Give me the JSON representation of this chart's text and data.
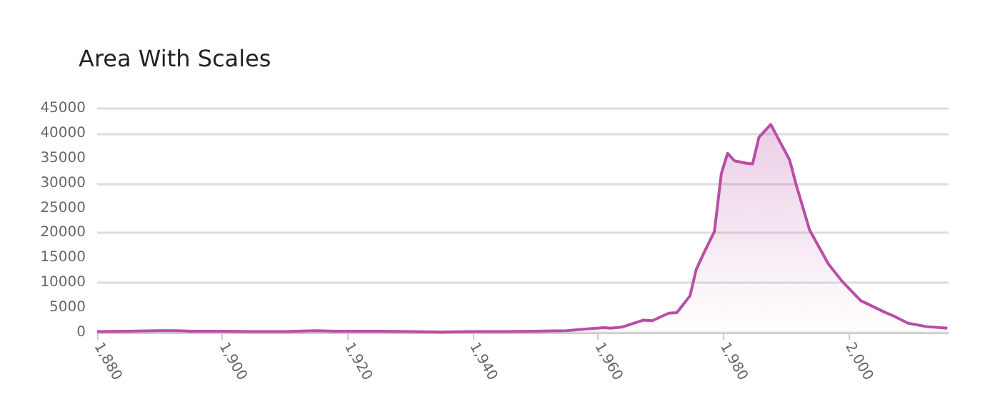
{
  "chart_data": {
    "type": "area",
    "title": "Area With Scales",
    "x": [
      1880,
      1885,
      1890,
      1892,
      1895,
      1900,
      1905,
      1910,
      1915,
      1918,
      1925,
      1930,
      1935,
      1940,
      1945,
      1950,
      1955,
      1958,
      1961,
      1962,
      1963.8,
      1967.2,
      1968.7,
      1971.3,
      1972.6,
      1974.7,
      1975.7,
      1977,
      1978.6,
      1979.7,
      1980.7,
      1981.8,
      1983.7,
      1984.7,
      1985.7,
      1987.6,
      1990.6,
      1991.7,
      1993.8,
      1996.8,
      1999,
      2001.3,
      2002,
      2005.8,
      2007.3,
      2009.5,
      2012.5,
      2015.8
    ],
    "series": [
      {
        "color": "#b84fa5",
        "values": [
          200,
          300,
          400,
          400,
          300,
          300,
          200,
          200,
          400,
          300,
          300,
          200,
          100,
          200,
          200,
          300,
          400,
          700,
          1000,
          900,
          1100,
          2500,
          2400,
          3900,
          4000,
          7400,
          12700,
          16200,
          20300,
          31900,
          36000,
          34500,
          34000,
          33900,
          39200,
          41800,
          34700,
          29500,
          20600,
          13800,
          10300,
          7300,
          6400,
          4100,
          3300,
          1900,
          1200,
          900
        ]
      }
    ],
    "xlim": [
      1880,
      2016
    ],
    "xticks": [
      {
        "value": 1880,
        "label": "1,880"
      },
      {
        "value": 1900,
        "label": "1,900"
      },
      {
        "value": 1920,
        "label": "1,920"
      },
      {
        "value": 1940,
        "label": "1,940"
      },
      {
        "value": 1960,
        "label": "1,960"
      },
      {
        "value": 1980,
        "label": "1,980"
      },
      {
        "value": 2000,
        "label": "2,000"
      }
    ],
    "ylim": [
      0,
      45000
    ],
    "yticks": [
      0,
      5000,
      10000,
      15000,
      20000,
      25000,
      30000,
      35000,
      40000,
      45000
    ],
    "grid": "y"
  }
}
